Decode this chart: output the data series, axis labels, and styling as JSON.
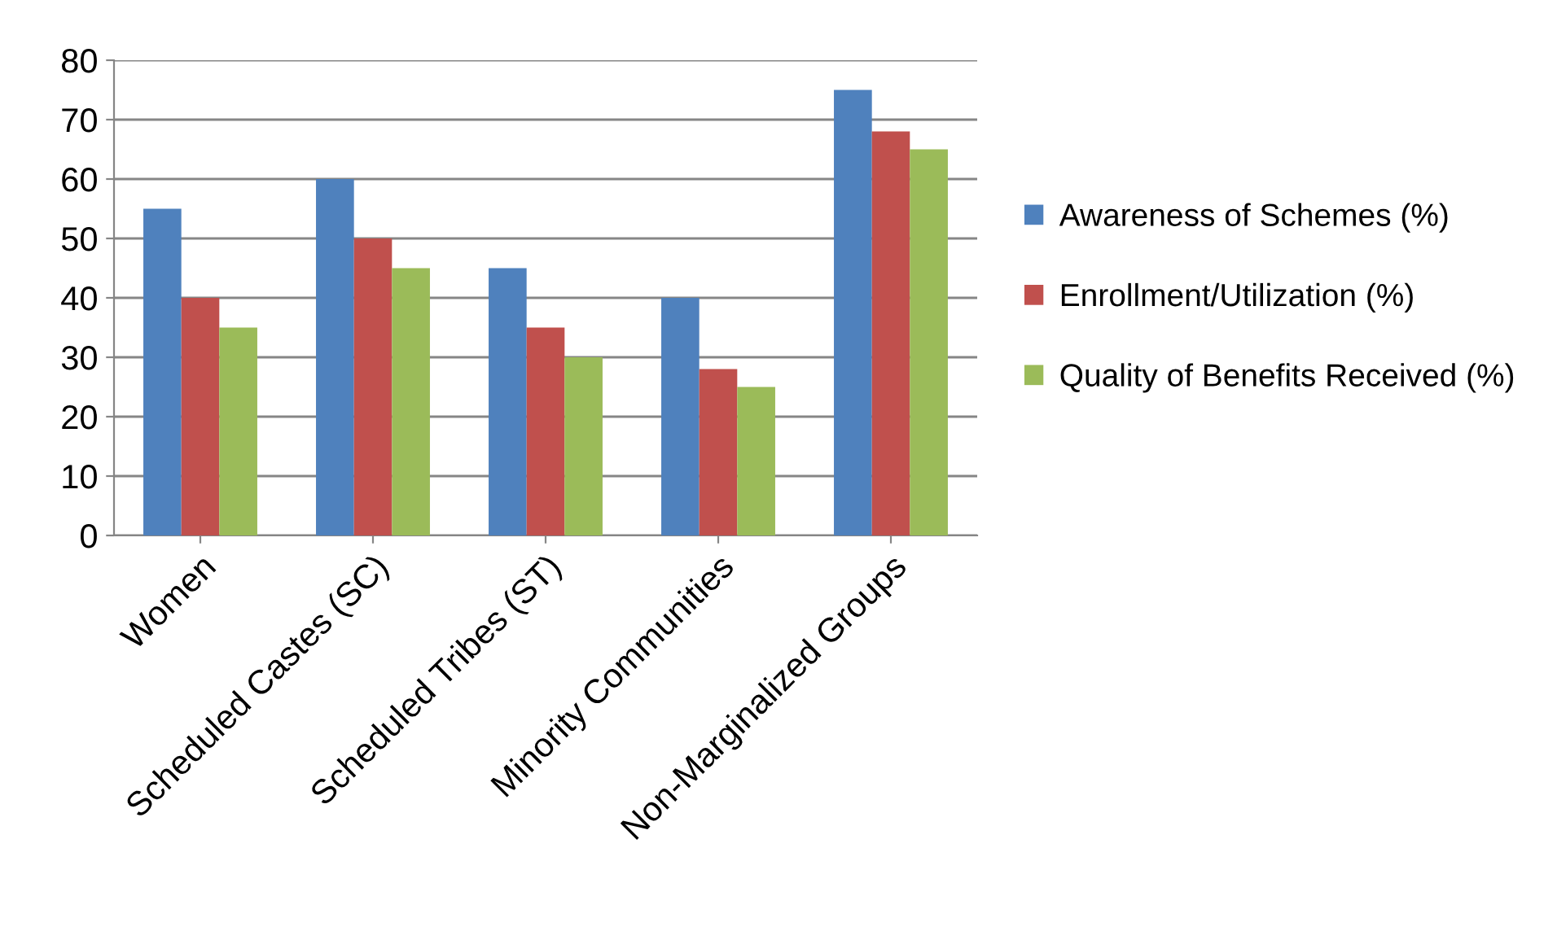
{
  "chart_data": {
    "type": "bar",
    "categories": [
      "Women",
      "Scheduled Castes (SC)",
      "Scheduled Tribes (ST)",
      "Minority Communities",
      "Non-Marginalized Groups"
    ],
    "series": [
      {
        "name": "Awareness of Schemes (%)",
        "color": "#4f81bd",
        "values": [
          55,
          60,
          45,
          40,
          75
        ]
      },
      {
        "name": "Enrollment/Utilization (%)",
        "color": "#c0504d",
        "values": [
          40,
          50,
          35,
          28,
          68
        ]
      },
      {
        "name": "Quality of Benefits Received (%)",
        "color": "#9bbb59",
        "values": [
          35,
          45,
          30,
          25,
          65
        ]
      }
    ],
    "ylim": [
      0,
      80
    ],
    "yticks": [
      0,
      10,
      20,
      30,
      40,
      50,
      60,
      70,
      80
    ],
    "grid": "y",
    "legend": "right"
  }
}
